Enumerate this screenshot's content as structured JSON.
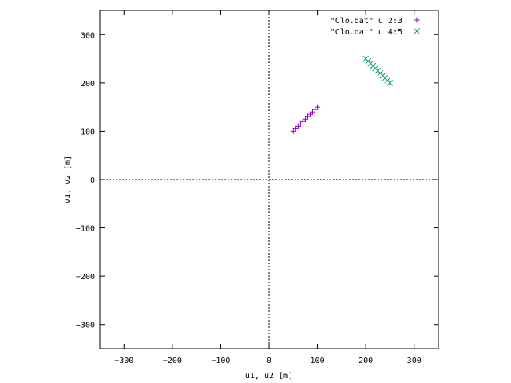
{
  "chart_data": {
    "type": "scatter",
    "title": "",
    "xlabel": "u1, u2 [m]",
    "ylabel": "v1, v2 [m]",
    "xlim": [
      -350,
      350
    ],
    "ylim": [
      -350,
      350
    ],
    "xticks": [
      -300,
      -200,
      -100,
      0,
      100,
      200,
      300
    ],
    "yticks": [
      -300,
      -200,
      -100,
      0,
      100,
      200,
      300
    ],
    "zero_axes": true,
    "grid": false,
    "legend_position": "top-right",
    "series": [
      {
        "name": "\"Clo.dat\" u 2:3",
        "marker": "plus",
        "color": "#9400d3",
        "x": [
          50,
          55,
          60,
          65,
          70,
          75,
          80,
          85,
          90,
          95,
          100
        ],
        "y": [
          100,
          105,
          110,
          115,
          120,
          125,
          130,
          135,
          140,
          145,
          150
        ]
      },
      {
        "name": "\"Clo.dat\" u 4:5",
        "marker": "cross",
        "color": "#009e73",
        "x": [
          200,
          205,
          210,
          215,
          220,
          225,
          230,
          235,
          240,
          245,
          250
        ],
        "y": [
          250,
          245,
          240,
          235,
          230,
          225,
          220,
          215,
          210,
          205,
          200
        ]
      }
    ]
  }
}
